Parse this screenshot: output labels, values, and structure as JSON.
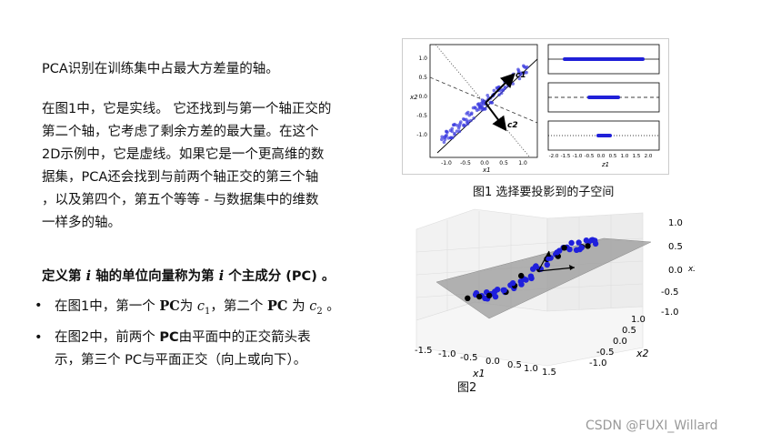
{
  "text": {
    "p1": "PCA识别在训练集中占最大方差量的轴。",
    "p2_lines": [
      "在图1中，它是实线。 它还找到与第一个轴正交的",
      "第二个轴，它考虑了剩余方差的最大量。在这个",
      "2D示例中，它是虚线。如果它是一个更高维的数",
      "据集，PCA还会找到与前两个轴正交的第三个轴",
      "，以及第四个，第五个等等 - 与数据集中的维数",
      "一样多的轴。"
    ],
    "def_a": "定义第 ",
    "def_i1": "i",
    "def_b": " 轴的单位向量称为第 ",
    "def_i2": "i",
    "def_c": " 个主成分 (PC) 。",
    "bullet_dot": "•",
    "b1_a": "在图1中，第一个 ",
    "b1_pc1": "PC",
    "b1_b": "为 ",
    "b1_c1": "c",
    "b1_c1sub": "1",
    "b1_c": "，第二个 ",
    "b1_pc2": "PC",
    "b1_d": " 为 ",
    "b1_c2": "c",
    "b1_c2sub": "2",
    "b1_e": " 。",
    "b2_a": "在图2中，前两个 ",
    "b2_pc": "PC",
    "b2_b": "由平面中的正交箭头表",
    "b2_line2": "示，第三个 PC与平面正交（向上或向下）。"
  },
  "figure1": {
    "caption": "图1 选择要投影到的子空间",
    "main_yticks": [
      "1.0",
      "0.5",
      "0.0",
      "-0.5",
      "-1.0"
    ],
    "main_xticks": [
      "-1.0",
      "-0.5",
      "0.0",
      "0.5",
      "1.0"
    ],
    "main_ylabel": "x2",
    "main_xlabel": "x1",
    "arrow1_label": "c1",
    "arrow2_label": "c2",
    "sub_xticks": [
      "-2.0",
      "-1.5",
      "-1.0",
      "-0.5",
      "0.0",
      "0.5",
      "1.0",
      "1.5",
      "2.0"
    ],
    "sub_xlabel": "z1"
  },
  "figure2": {
    "caption": "图2",
    "z_ticks": [
      "1.0",
      "0.5",
      "0.0",
      "-0.5",
      "-1.0"
    ],
    "x_ticks": [
      "-1.5",
      "-1.0",
      "-0.5",
      "0.0",
      "0.5",
      "1.0",
      "1.5"
    ],
    "y_ticks": [
      "1.0",
      "0.5",
      "0.0",
      "-0.5",
      "-1.0"
    ],
    "x_label": "x1",
    "y_label": "x2",
    "z_label": "x3"
  },
  "watermark": "CSDN @FUXI_Willard",
  "colors": {
    "point_blue": "#1f1fdc",
    "plane_gray": "#a8a8a8",
    "text": "#111111"
  }
}
